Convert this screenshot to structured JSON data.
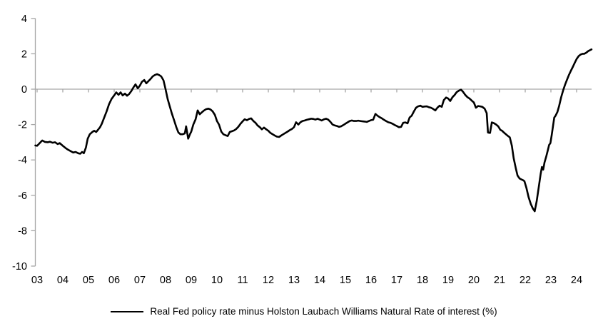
{
  "chart_data": {
    "type": "line",
    "title": "",
    "legend": {
      "position": "bottom",
      "label": "Real Fed policy rate minus Holston Laubach Williams Natural Rate of interest (%)"
    },
    "grid": "none (horizontal zero line only)",
    "axis_color": "#a6a6a6",
    "label_color": "#000000",
    "x_axis": {
      "tick_labels": [
        "03",
        "04",
        "05",
        "06",
        "07",
        "08",
        "09",
        "10",
        "11",
        "12",
        "13",
        "14",
        "15",
        "16",
        "17",
        "18",
        "19",
        "20",
        "21",
        "22",
        "23",
        "24"
      ],
      "range": [
        2002.9,
        2024.65
      ],
      "ticks_on_zero_line": true
    },
    "y_axis": {
      "ticks": [
        4,
        2,
        0,
        -2,
        -4,
        -6,
        -8,
        -10
      ],
      "range": [
        -10,
        4
      ]
    },
    "series": [
      {
        "name": "Real Fed policy rate minus Holston Laubach Williams Natural Rate of interest (%)",
        "color": "#000000",
        "points": [
          [
            2002.93,
            -3.18
          ],
          [
            2003.0,
            -3.2
          ],
          [
            2003.1,
            -3.05
          ],
          [
            2003.2,
            -2.9
          ],
          [
            2003.3,
            -2.98
          ],
          [
            2003.42,
            -3.0
          ],
          [
            2003.5,
            -2.97
          ],
          [
            2003.6,
            -3.03
          ],
          [
            2003.7,
            -3.0
          ],
          [
            2003.8,
            -3.1
          ],
          [
            2003.88,
            -3.05
          ],
          [
            2004.0,
            -3.2
          ],
          [
            2004.1,
            -3.32
          ],
          [
            2004.2,
            -3.42
          ],
          [
            2004.3,
            -3.5
          ],
          [
            2004.4,
            -3.58
          ],
          [
            2004.5,
            -3.55
          ],
          [
            2004.6,
            -3.62
          ],
          [
            2004.68,
            -3.65
          ],
          [
            2004.75,
            -3.55
          ],
          [
            2004.82,
            -3.62
          ],
          [
            2004.9,
            -3.3
          ],
          [
            2004.97,
            -2.8
          ],
          [
            2005.05,
            -2.55
          ],
          [
            2005.15,
            -2.42
          ],
          [
            2005.22,
            -2.35
          ],
          [
            2005.3,
            -2.42
          ],
          [
            2005.38,
            -2.28
          ],
          [
            2005.45,
            -2.15
          ],
          [
            2005.52,
            -1.95
          ],
          [
            2005.6,
            -1.65
          ],
          [
            2005.7,
            -1.28
          ],
          [
            2005.8,
            -0.85
          ],
          [
            2005.9,
            -0.55
          ],
          [
            2006.0,
            -0.35
          ],
          [
            2006.08,
            -0.18
          ],
          [
            2006.17,
            -0.32
          ],
          [
            2006.25,
            -0.18
          ],
          [
            2006.33,
            -0.35
          ],
          [
            2006.42,
            -0.25
          ],
          [
            2006.5,
            -0.37
          ],
          [
            2006.58,
            -0.28
          ],
          [
            2006.67,
            -0.1
          ],
          [
            2006.75,
            0.1
          ],
          [
            2006.83,
            0.27
          ],
          [
            2006.92,
            0.05
          ],
          [
            2007.0,
            0.2
          ],
          [
            2007.08,
            0.42
          ],
          [
            2007.17,
            0.52
          ],
          [
            2007.25,
            0.33
          ],
          [
            2007.33,
            0.45
          ],
          [
            2007.42,
            0.58
          ],
          [
            2007.5,
            0.72
          ],
          [
            2007.58,
            0.8
          ],
          [
            2007.67,
            0.85
          ],
          [
            2007.75,
            0.8
          ],
          [
            2007.83,
            0.72
          ],
          [
            2007.92,
            0.5
          ],
          [
            2008.0,
            0.0
          ],
          [
            2008.08,
            -0.55
          ],
          [
            2008.17,
            -1.0
          ],
          [
            2008.25,
            -1.4
          ],
          [
            2008.33,
            -1.75
          ],
          [
            2008.42,
            -2.15
          ],
          [
            2008.5,
            -2.45
          ],
          [
            2008.58,
            -2.55
          ],
          [
            2008.67,
            -2.55
          ],
          [
            2008.75,
            -2.5
          ],
          [
            2008.8,
            -2.1
          ],
          [
            2008.88,
            -2.8
          ],
          [
            2008.95,
            -2.55
          ],
          [
            2009.0,
            -2.4
          ],
          [
            2009.08,
            -2.0
          ],
          [
            2009.17,
            -1.7
          ],
          [
            2009.25,
            -1.2
          ],
          [
            2009.33,
            -1.42
          ],
          [
            2009.42,
            -1.3
          ],
          [
            2009.5,
            -1.2
          ],
          [
            2009.58,
            -1.13
          ],
          [
            2009.67,
            -1.1
          ],
          [
            2009.75,
            -1.15
          ],
          [
            2009.83,
            -1.25
          ],
          [
            2009.92,
            -1.45
          ],
          [
            2010.0,
            -1.8
          ],
          [
            2010.08,
            -2.0
          ],
          [
            2010.17,
            -2.4
          ],
          [
            2010.25,
            -2.55
          ],
          [
            2010.33,
            -2.6
          ],
          [
            2010.42,
            -2.65
          ],
          [
            2010.5,
            -2.42
          ],
          [
            2010.58,
            -2.38
          ],
          [
            2010.67,
            -2.33
          ],
          [
            2010.75,
            -2.25
          ],
          [
            2010.83,
            -2.13
          ],
          [
            2010.92,
            -1.95
          ],
          [
            2011.0,
            -1.82
          ],
          [
            2011.08,
            -1.7
          ],
          [
            2011.17,
            -1.76
          ],
          [
            2011.25,
            -1.68
          ],
          [
            2011.33,
            -1.65
          ],
          [
            2011.42,
            -1.8
          ],
          [
            2011.5,
            -1.9
          ],
          [
            2011.58,
            -2.05
          ],
          [
            2011.67,
            -2.15
          ],
          [
            2011.75,
            -2.27
          ],
          [
            2011.83,
            -2.17
          ],
          [
            2011.92,
            -2.27
          ],
          [
            2012.0,
            -2.35
          ],
          [
            2012.08,
            -2.47
          ],
          [
            2012.17,
            -2.55
          ],
          [
            2012.25,
            -2.62
          ],
          [
            2012.33,
            -2.68
          ],
          [
            2012.42,
            -2.7
          ],
          [
            2012.5,
            -2.62
          ],
          [
            2012.58,
            -2.55
          ],
          [
            2012.67,
            -2.47
          ],
          [
            2012.75,
            -2.4
          ],
          [
            2012.83,
            -2.32
          ],
          [
            2012.92,
            -2.25
          ],
          [
            2013.0,
            -2.15
          ],
          [
            2013.08,
            -1.87
          ],
          [
            2013.17,
            -2.0
          ],
          [
            2013.25,
            -1.87
          ],
          [
            2013.33,
            -1.8
          ],
          [
            2013.42,
            -1.77
          ],
          [
            2013.5,
            -1.73
          ],
          [
            2013.58,
            -1.7
          ],
          [
            2013.67,
            -1.67
          ],
          [
            2013.75,
            -1.68
          ],
          [
            2013.83,
            -1.72
          ],
          [
            2013.92,
            -1.67
          ],
          [
            2014.0,
            -1.72
          ],
          [
            2014.08,
            -1.77
          ],
          [
            2014.17,
            -1.7
          ],
          [
            2014.25,
            -1.67
          ],
          [
            2014.33,
            -1.72
          ],
          [
            2014.42,
            -1.85
          ],
          [
            2014.5,
            -2.0
          ],
          [
            2014.58,
            -2.05
          ],
          [
            2014.67,
            -2.08
          ],
          [
            2014.75,
            -2.13
          ],
          [
            2014.83,
            -2.1
          ],
          [
            2014.92,
            -2.03
          ],
          [
            2015.0,
            -1.95
          ],
          [
            2015.08,
            -1.88
          ],
          [
            2015.17,
            -1.8
          ],
          [
            2015.25,
            -1.77
          ],
          [
            2015.33,
            -1.8
          ],
          [
            2015.42,
            -1.8
          ],
          [
            2015.5,
            -1.78
          ],
          [
            2015.58,
            -1.8
          ],
          [
            2015.67,
            -1.82
          ],
          [
            2015.75,
            -1.83
          ],
          [
            2015.83,
            -1.85
          ],
          [
            2015.92,
            -1.8
          ],
          [
            2016.0,
            -1.75
          ],
          [
            2016.08,
            -1.73
          ],
          [
            2016.17,
            -1.4
          ],
          [
            2016.25,
            -1.5
          ],
          [
            2016.33,
            -1.58
          ],
          [
            2016.42,
            -1.65
          ],
          [
            2016.5,
            -1.73
          ],
          [
            2016.58,
            -1.8
          ],
          [
            2016.67,
            -1.87
          ],
          [
            2016.75,
            -1.9
          ],
          [
            2016.83,
            -1.95
          ],
          [
            2016.92,
            -2.03
          ],
          [
            2017.0,
            -2.08
          ],
          [
            2017.08,
            -2.15
          ],
          [
            2017.17,
            -2.13
          ],
          [
            2017.25,
            -1.9
          ],
          [
            2017.33,
            -1.88
          ],
          [
            2017.42,
            -1.93
          ],
          [
            2017.5,
            -1.6
          ],
          [
            2017.58,
            -1.5
          ],
          [
            2017.67,
            -1.25
          ],
          [
            2017.75,
            -1.05
          ],
          [
            2017.83,
            -0.97
          ],
          [
            2017.92,
            -0.93
          ],
          [
            2018.0,
            -1.0
          ],
          [
            2018.08,
            -0.98
          ],
          [
            2018.17,
            -0.97
          ],
          [
            2018.25,
            -1.02
          ],
          [
            2018.33,
            -1.05
          ],
          [
            2018.42,
            -1.12
          ],
          [
            2018.5,
            -1.2
          ],
          [
            2018.58,
            -1.05
          ],
          [
            2018.67,
            -0.93
          ],
          [
            2018.75,
            -1.0
          ],
          [
            2018.83,
            -0.62
          ],
          [
            2018.92,
            -0.47
          ],
          [
            2019.0,
            -0.53
          ],
          [
            2019.08,
            -0.67
          ],
          [
            2019.17,
            -0.45
          ],
          [
            2019.25,
            -0.33
          ],
          [
            2019.33,
            -0.17
          ],
          [
            2019.42,
            -0.08
          ],
          [
            2019.5,
            -0.03
          ],
          [
            2019.58,
            -0.15
          ],
          [
            2019.67,
            -0.33
          ],
          [
            2019.75,
            -0.45
          ],
          [
            2019.83,
            -0.53
          ],
          [
            2019.92,
            -0.65
          ],
          [
            2020.0,
            -0.75
          ],
          [
            2020.08,
            -1.05
          ],
          [
            2020.17,
            -0.95
          ],
          [
            2020.25,
            -0.97
          ],
          [
            2020.33,
            -1.0
          ],
          [
            2020.42,
            -1.1
          ],
          [
            2020.5,
            -1.35
          ],
          [
            2020.55,
            -2.45
          ],
          [
            2020.63,
            -2.47
          ],
          [
            2020.7,
            -1.88
          ],
          [
            2020.78,
            -1.92
          ],
          [
            2020.87,
            -2.0
          ],
          [
            2020.95,
            -2.1
          ],
          [
            2021.03,
            -2.3
          ],
          [
            2021.1,
            -2.35
          ],
          [
            2021.17,
            -2.45
          ],
          [
            2021.25,
            -2.55
          ],
          [
            2021.33,
            -2.65
          ],
          [
            2021.4,
            -2.72
          ],
          [
            2021.48,
            -3.2
          ],
          [
            2021.55,
            -3.9
          ],
          [
            2021.63,
            -4.45
          ],
          [
            2021.7,
            -4.88
          ],
          [
            2021.78,
            -5.05
          ],
          [
            2021.85,
            -5.1
          ],
          [
            2021.92,
            -5.15
          ],
          [
            2021.97,
            -5.2
          ],
          [
            2022.05,
            -5.6
          ],
          [
            2022.13,
            -6.1
          ],
          [
            2022.22,
            -6.5
          ],
          [
            2022.3,
            -6.75
          ],
          [
            2022.37,
            -6.9
          ],
          [
            2022.45,
            -6.3
          ],
          [
            2022.53,
            -5.5
          ],
          [
            2022.6,
            -4.8
          ],
          [
            2022.65,
            -4.4
          ],
          [
            2022.7,
            -4.55
          ],
          [
            2022.75,
            -4.15
          ],
          [
            2022.82,
            -3.8
          ],
          [
            2022.88,
            -3.45
          ],
          [
            2022.93,
            -3.15
          ],
          [
            2022.98,
            -3.05
          ],
          [
            2023.03,
            -2.6
          ],
          [
            2023.08,
            -2.1
          ],
          [
            2023.13,
            -1.6
          ],
          [
            2023.18,
            -1.5
          ],
          [
            2023.25,
            -1.3
          ],
          [
            2023.32,
            -0.95
          ],
          [
            2023.4,
            -0.45
          ],
          [
            2023.48,
            -0.05
          ],
          [
            2023.55,
            0.25
          ],
          [
            2023.63,
            0.55
          ],
          [
            2023.7,
            0.8
          ],
          [
            2023.78,
            1.05
          ],
          [
            2023.85,
            1.25
          ],
          [
            2023.93,
            1.5
          ],
          [
            2024.0,
            1.7
          ],
          [
            2024.08,
            1.87
          ],
          [
            2024.15,
            1.95
          ],
          [
            2024.23,
            2.0
          ],
          [
            2024.3,
            2.0
          ],
          [
            2024.38,
            2.07
          ],
          [
            2024.45,
            2.15
          ],
          [
            2024.52,
            2.2
          ],
          [
            2024.58,
            2.25
          ]
        ]
      }
    ]
  }
}
